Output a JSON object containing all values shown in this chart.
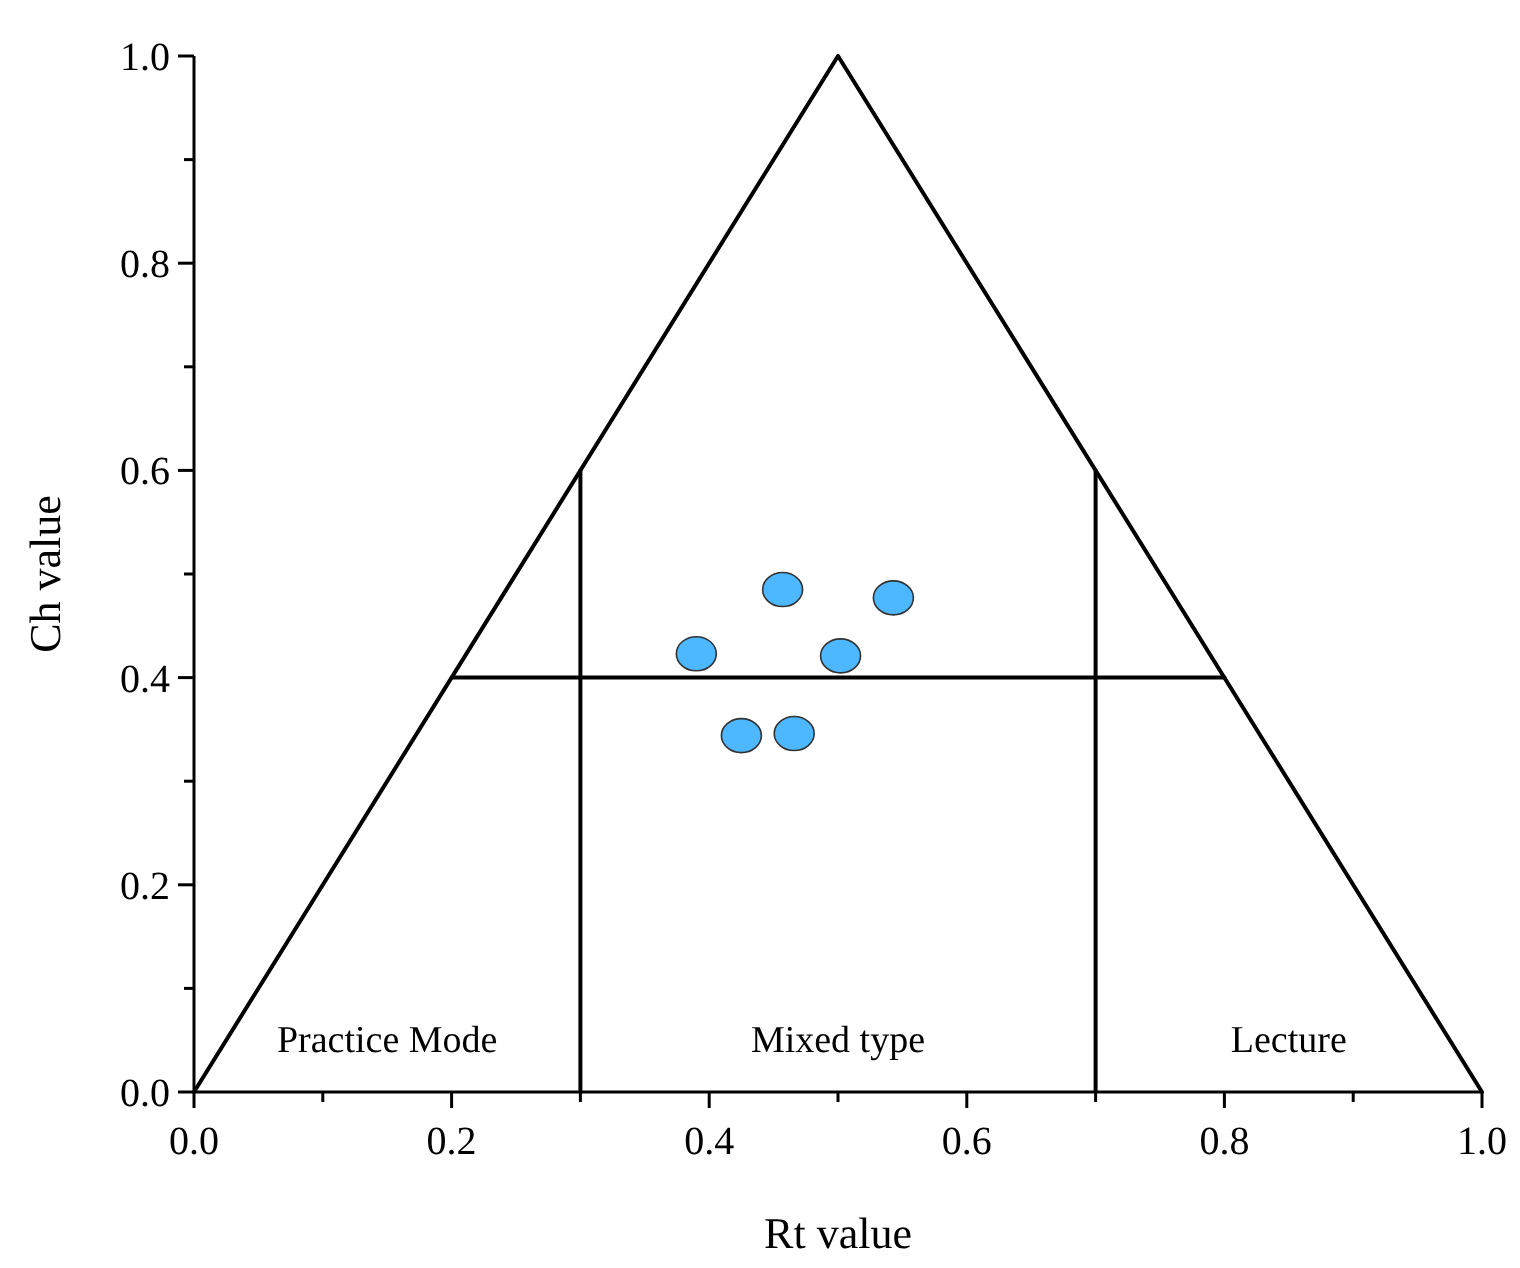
{
  "chart_data": {
    "type": "scatter",
    "xlabel": "Rt value",
    "ylabel": "Ch value",
    "xlim": [
      0,
      1
    ],
    "ylim": [
      0,
      1
    ],
    "xticks": [
      {
        "value": 0,
        "label": "0.0"
      },
      {
        "value": 0.1,
        "label": null
      },
      {
        "value": 0.2,
        "label": "0.2"
      },
      {
        "value": 0.3,
        "label": null
      },
      {
        "value": 0.4,
        "label": "0.4"
      },
      {
        "value": 0.5,
        "label": null
      },
      {
        "value": 0.6,
        "label": "0.6"
      },
      {
        "value": 0.7,
        "label": null
      },
      {
        "value": 0.8,
        "label": "0.8"
      },
      {
        "value": 0.9,
        "label": null
      },
      {
        "value": 1,
        "label": "1.0"
      }
    ],
    "yticks": [
      {
        "value": 0,
        "label": "0.0"
      },
      {
        "value": 0.1,
        "label": null
      },
      {
        "value": 0.2,
        "label": "0.2"
      },
      {
        "value": 0.3,
        "label": null
      },
      {
        "value": 0.4,
        "label": "0.4"
      },
      {
        "value": 0.5,
        "label": null
      },
      {
        "value": 0.6,
        "label": "0.6"
      },
      {
        "value": 0.7,
        "label": null
      },
      {
        "value": 0.8,
        "label": "0.8"
      },
      {
        "value": 0.9,
        "label": null
      },
      {
        "value": 1,
        "label": "1.0"
      }
    ],
    "grid": false,
    "marker": "circle",
    "series": [
      {
        "type": "line",
        "color": "#000000",
        "marker": "none",
        "x": [
          0,
          0.5,
          1
        ],
        "values": [
          0,
          1,
          0
        ]
      },
      {
        "type": "line",
        "color": "#000000",
        "marker": "none",
        "x": [
          0.2,
          0.8
        ],
        "values": [
          0.4,
          0.4
        ]
      },
      {
        "type": "line",
        "color": "#000000",
        "marker": "none",
        "x": [
          0.3,
          0.3
        ],
        "values": [
          0,
          0.6
        ]
      },
      {
        "type": "line",
        "color": "#000000",
        "marker": "none",
        "x": [
          0.7,
          0.7
        ],
        "values": [
          0,
          0.6
        ]
      },
      {
        "color": "#4db8ff",
        "x": [
          0.39,
          0.457,
          0.543,
          0.502,
          0.425,
          0.466
        ],
        "values": [
          0.423,
          0.485,
          0.477,
          0.421,
          0.344,
          0.346
        ]
      }
    ],
    "annotations": [
      "Practice Mode",
      "Mixed type",
      "Lecture"
    ]
  }
}
